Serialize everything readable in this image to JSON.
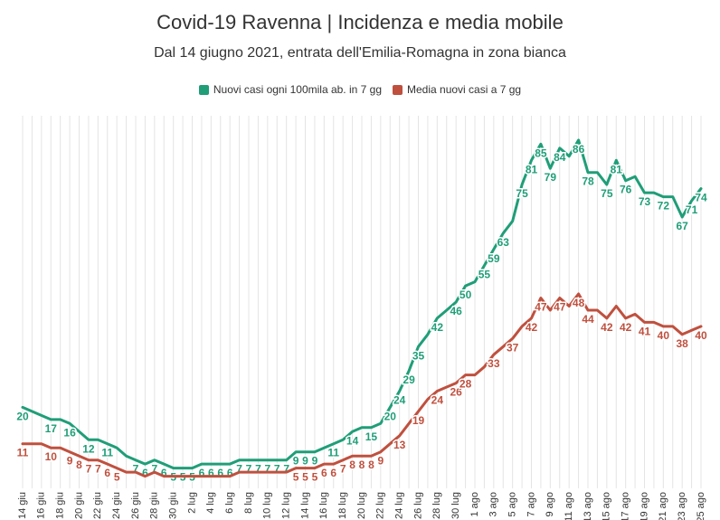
{
  "chart_data": {
    "type": "line",
    "title": "Covid-19 Ravenna | Incidenza e media mobile",
    "subtitle": "Dal 14 giugno 2021, entrata dell'Emilia-Romagna in zona bianca",
    "xlabel": "",
    "ylabel": "",
    "ylim": [
      0,
      92
    ],
    "grid": "vertical",
    "legend": "top-center",
    "x": [
      "14 giu",
      "15 giu",
      "16 giu",
      "17 giu",
      "18 giu",
      "19 giu",
      "20 giu",
      "21 giu",
      "22 giu",
      "23 giu",
      "24 giu",
      "25 giu",
      "26 giu",
      "27 giu",
      "28 giu",
      "29 giu",
      "30 giu",
      "1 lug",
      "2 lug",
      "3 lug",
      "4 lug",
      "5 lug",
      "6 lug",
      "7 lug",
      "8 lug",
      "9 lug",
      "10 lug",
      "11 lug",
      "12 lug",
      "13 lug",
      "14 lug",
      "15 lug",
      "16 lug",
      "17 lug",
      "18 lug",
      "19 lug",
      "20 lug",
      "21 lug",
      "22 lug",
      "23 lug",
      "24 lug",
      "25 lug",
      "26 lug",
      "27 lug",
      "28 lug",
      "29 lug",
      "30 lug",
      "31 lug",
      "1 ago",
      "2 ago",
      "3 ago",
      "4 ago",
      "5 ago",
      "6 ago",
      "7 ago",
      "8 ago",
      "9 ago",
      "10 ago",
      "11 ago",
      "12 ago",
      "13 ago",
      "14 ago",
      "15 ago",
      "16 ago",
      "17 ago",
      "18 ago",
      "19 ago",
      "20 ago",
      "21 ago",
      "22 ago",
      "23 ago",
      "24 ago",
      "25 ago"
    ],
    "tick_labels": [
      "14 giu",
      "16 giu",
      "18 giu",
      "20 giu",
      "22 giu",
      "24 giu",
      "26 giu",
      "28 giu",
      "30 giu",
      "2 lug",
      "4 lug",
      "6 lug",
      "8 lug",
      "10 lug",
      "12 lug",
      "14 lug",
      "16 lug",
      "18 lug",
      "20 lug",
      "22 lug",
      "24 lug",
      "26 lug",
      "28 lug",
      "30 lug",
      "1 ago",
      "3 ago",
      "5 ago",
      "7 ago",
      "9 ago",
      "11 ago",
      "13 ago",
      "15 ago",
      "17 ago",
      "19 ago",
      "21 ago",
      "23 ago",
      "25 ago"
    ],
    "tick_every": 2,
    "series": [
      {
        "name": "Nuovi casi ogni 100mila ab. in 7 gg",
        "color": "#1f9e77",
        "values": [
          20,
          19,
          18,
          17,
          17,
          16,
          14,
          12,
          12,
          11,
          10,
          8,
          7,
          6,
          7,
          6,
          5,
          5,
          5,
          6,
          6,
          6,
          6,
          7,
          7,
          7,
          7,
          7,
          7,
          9,
          9,
          9,
          10,
          11,
          12,
          14,
          15,
          15,
          16,
          20,
          24,
          29,
          35,
          38,
          42,
          44,
          46,
          50,
          51,
          55,
          59,
          63,
          66,
          75,
          81,
          85,
          79,
          84,
          82,
          86,
          78,
          78,
          75,
          81,
          76,
          77,
          73,
          73,
          72,
          72,
          67,
          71,
          74
        ],
        "labels": [
          "20",
          "",
          "",
          "17",
          "",
          "16",
          "",
          "12",
          "",
          "11",
          "",
          "",
          "7",
          "6",
          "7",
          "6",
          "5",
          "5",
          "5",
          "6",
          "6",
          "6",
          "6",
          "7",
          "7",
          "7",
          "7",
          "7",
          "7",
          "9",
          "9",
          "9",
          "",
          "11",
          "",
          "14",
          "",
          "15",
          "",
          "20",
          "24",
          "29",
          "35",
          "",
          "42",
          "",
          "46",
          "50",
          "",
          "55",
          "59",
          "63",
          "",
          "75",
          "81",
          "85",
          "79",
          "84",
          "",
          "86",
          "78",
          "",
          "75",
          "81",
          "76",
          "",
          "73",
          "",
          "72",
          "",
          "67",
          "71",
          "74"
        ]
      },
      {
        "name": "Media nuovi casi a 7 gg",
        "color": "#c0503e",
        "values": [
          11,
          11,
          11,
          10,
          10,
          9,
          8,
          7,
          7,
          6,
          5,
          4,
          4,
          3,
          4,
          3,
          3,
          3,
          3,
          3,
          3,
          3,
          3,
          4,
          4,
          4,
          4,
          4,
          4,
          5,
          5,
          5,
          6,
          6,
          7,
          8,
          8,
          8,
          9,
          11,
          13,
          16,
          19,
          22,
          24,
          25,
          26,
          28,
          28,
          30,
          33,
          35,
          37,
          40,
          42,
          47,
          44,
          47,
          45,
          48,
          44,
          44,
          42,
          45,
          42,
          43,
          41,
          41,
          40,
          40,
          38,
          39,
          40
        ],
        "labels": [
          "11",
          "",
          "",
          "10",
          "",
          "9",
          "8",
          "7",
          "7",
          "6",
          "5",
          "",
          "",
          "",
          "",
          "",
          "",
          "",
          "",
          "",
          "",
          "",
          "",
          "",
          "",
          "",
          "",
          "",
          "",
          "5",
          "5",
          "5",
          "6",
          "6",
          "7",
          "8",
          "8",
          "8",
          "9",
          "",
          "13",
          "",
          "19",
          "",
          "24",
          "",
          "26",
          "28",
          "",
          "",
          "33",
          "",
          "37",
          "",
          "42",
          "47",
          "",
          "47",
          "",
          "48",
          "44",
          "",
          "42",
          "",
          "42",
          "",
          "41",
          "",
          "40",
          "",
          "38",
          "",
          "40"
        ]
      }
    ]
  }
}
